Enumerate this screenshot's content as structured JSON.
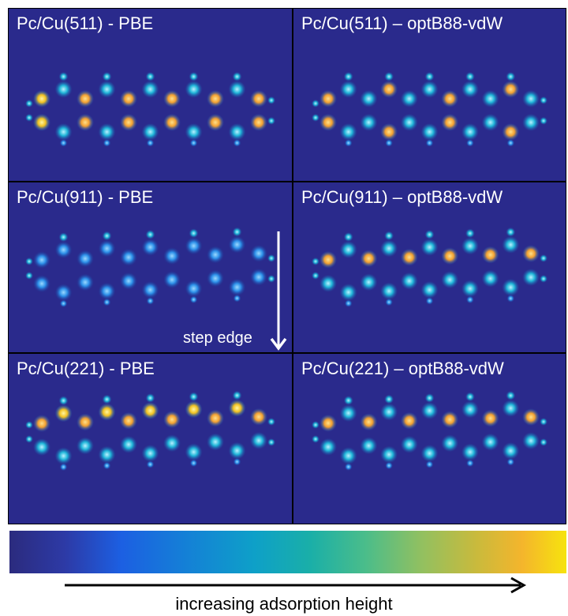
{
  "panels": [
    {
      "title": "Pc/Cu(511) - PBE",
      "mode": "flat-bright"
    },
    {
      "title": "Pc/Cu(511) – optB88-vdW",
      "mode": "flat-mid"
    },
    {
      "title": "Pc/Cu(911) - PBE",
      "mode": "step-blue"
    },
    {
      "title": "Pc/Cu(911) – optB88-vdW",
      "mode": "step-mix"
    },
    {
      "title": "Pc/Cu(221) - PBE",
      "mode": "step-bright"
    },
    {
      "title": "Pc/Cu(221) – optB88-vdW",
      "mode": "step-mix"
    }
  ],
  "step_edge_label": "step edge",
  "colorbar": {
    "colors": [
      "#2b2b7e",
      "#1c5fe2",
      "#0ea0c8",
      "#4bbd8a",
      "#caba3c",
      "#f6e30e"
    ]
  },
  "axis_caption": "increasing adsorption height"
}
